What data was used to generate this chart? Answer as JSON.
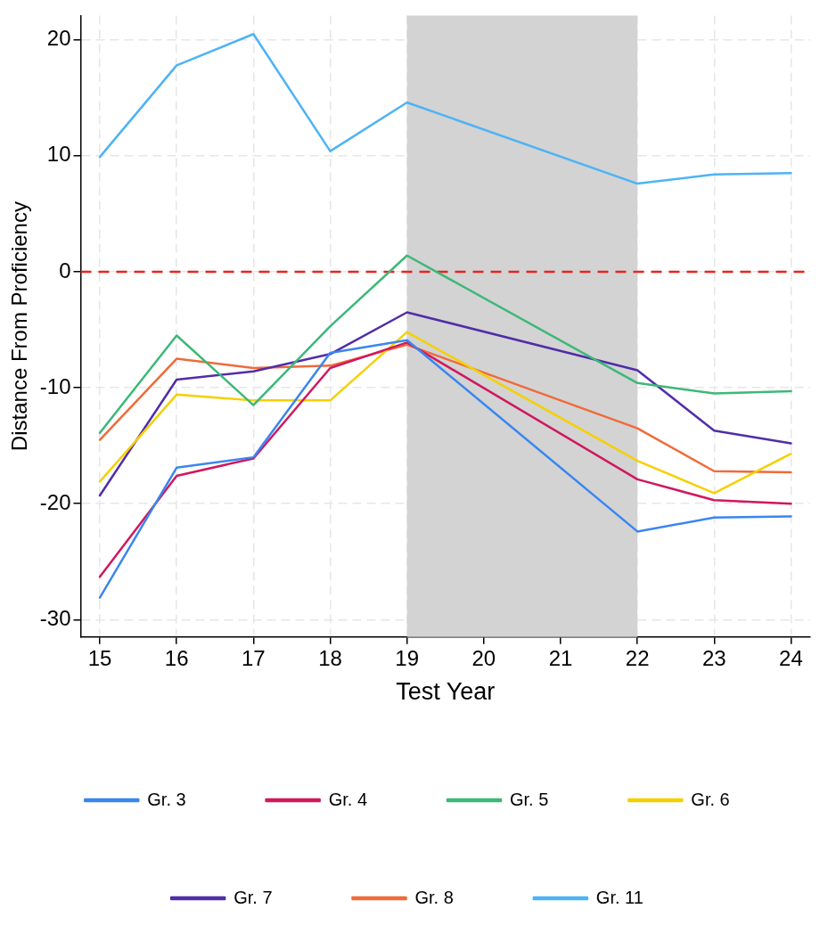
{
  "chart_data": {
    "type": "line",
    "xlabel": "Test Year",
    "ylabel": "Distance From Proficiency",
    "xlim": [
      14.75,
      24.25
    ],
    "xticks": [
      15,
      16,
      17,
      18,
      19,
      20,
      21,
      22,
      23,
      24
    ],
    "ylim": [
      -31.5,
      22.1
    ],
    "yticks": [
      -30,
      -20,
      -10,
      0,
      10,
      20
    ],
    "grid": true,
    "legend": "bottom",
    "marker": "none",
    "line_style": "solid",
    "ref_lines": [
      {
        "axis": "y",
        "value": 0,
        "color": "#e8231f",
        "line_style": "dashed"
      }
    ],
    "bands": [
      {
        "axis": "x",
        "from": 19,
        "to": 22,
        "color": "#d3d3d3"
      }
    ],
    "series": [
      {
        "name": "Gr. 3",
        "color": "#3a86f0",
        "x": [
          15,
          16,
          17,
          18,
          19,
          22,
          23,
          24
        ],
        "values": [
          -28.1,
          -16.9,
          -16.0,
          -7.0,
          -5.9,
          -22.4,
          -21.2,
          -21.1
        ]
      },
      {
        "name": "Gr. 4",
        "color": "#d0185e",
        "x": [
          15,
          16,
          17,
          18,
          19,
          22,
          23,
          24
        ],
        "values": [
          -26.3,
          -17.6,
          -16.1,
          -8.3,
          -6.1,
          -17.9,
          -19.7,
          -20.0
        ]
      },
      {
        "name": "Gr. 5",
        "color": "#3cb878",
        "x": [
          15,
          16,
          17,
          18,
          19,
          22,
          23,
          24
        ],
        "values": [
          -13.9,
          -5.5,
          -11.5,
          -4.7,
          1.4,
          -9.6,
          -10.5,
          -10.3
        ]
      },
      {
        "name": "Gr. 6",
        "color": "#f5d000",
        "x": [
          15,
          16,
          17,
          18,
          19,
          22,
          23,
          24
        ],
        "values": [
          -18.1,
          -10.6,
          -11.1,
          -11.1,
          -5.2,
          -16.3,
          -19.1,
          -15.7
        ]
      },
      {
        "name": "Gr. 7",
        "color": "#512da8",
        "x": [
          15,
          16,
          17,
          18,
          19,
          22,
          23,
          24
        ],
        "values": [
          -19.3,
          -9.3,
          -8.6,
          -7.1,
          -3.5,
          -8.5,
          -13.7,
          -14.8
        ]
      },
      {
        "name": "Gr. 8",
        "color": "#f06a3a",
        "x": [
          15,
          16,
          17,
          18,
          19,
          22,
          23,
          24
        ],
        "values": [
          -14.5,
          -7.5,
          -8.3,
          -8.1,
          -6.3,
          -13.5,
          -17.2,
          -17.3
        ]
      },
      {
        "name": "Gr. 11",
        "color": "#4db3f5",
        "x": [
          15,
          16,
          17,
          18,
          19,
          22,
          23,
          24
        ],
        "values": [
          9.9,
          17.8,
          20.5,
          10.4,
          14.6,
          7.6,
          8.4,
          8.5
        ]
      }
    ]
  }
}
